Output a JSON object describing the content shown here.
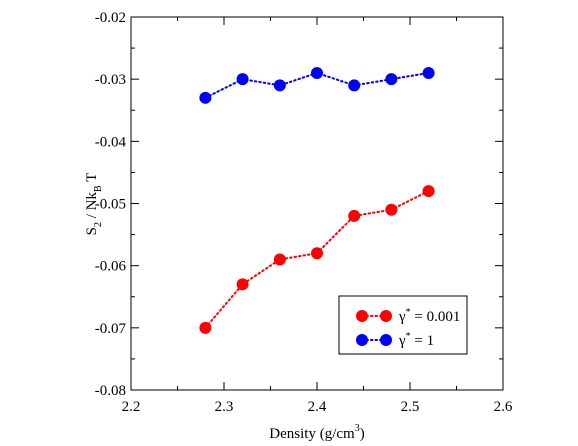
{
  "chart_data": {
    "type": "scatter",
    "xlabel_main": "Density (g/cm",
    "xlabel_sup": "3",
    "xlabel_close": ")",
    "ylabel_parts": {
      "s": "S",
      "s_sub": "2",
      "mid": " / Nk",
      "k_sub": "B",
      "t": " T"
    },
    "xlim": [
      2.2,
      2.6
    ],
    "ylim": [
      -0.08,
      -0.02
    ],
    "xticks": [
      2.2,
      2.3,
      2.4,
      2.5,
      2.6
    ],
    "xtick_labels": [
      "2.2",
      "2.3",
      "2.4",
      "2.5",
      "2.6"
    ],
    "yticks": [
      -0.08,
      -0.07,
      -0.06,
      -0.05,
      -0.04,
      -0.03,
      -0.02
    ],
    "ytick_labels": [
      "-0.08",
      "-0.07",
      "-0.06",
      "-0.05",
      "-0.04",
      "-0.03",
      "-0.02"
    ],
    "grid": false,
    "legend_position": "bottom-right",
    "series": [
      {
        "legend": {
          "sym": "γ",
          "sup": "*",
          "rest": " = 0.001"
        },
        "color": "#ff0000",
        "x": [
          2.28,
          2.32,
          2.36,
          2.4,
          2.44,
          2.48,
          2.52
        ],
        "y": [
          -0.07,
          -0.063,
          -0.059,
          -0.058,
          -0.052,
          -0.051,
          -0.048
        ]
      },
      {
        "legend": {
          "sym": "γ",
          "sup": "*",
          "rest": " = 1"
        },
        "color": "#0000ff",
        "x": [
          2.28,
          2.32,
          2.36,
          2.4,
          2.44,
          2.48,
          2.52
        ],
        "y": [
          -0.033,
          -0.03,
          -0.031,
          -0.029,
          -0.031,
          -0.03,
          -0.029
        ]
      }
    ]
  }
}
